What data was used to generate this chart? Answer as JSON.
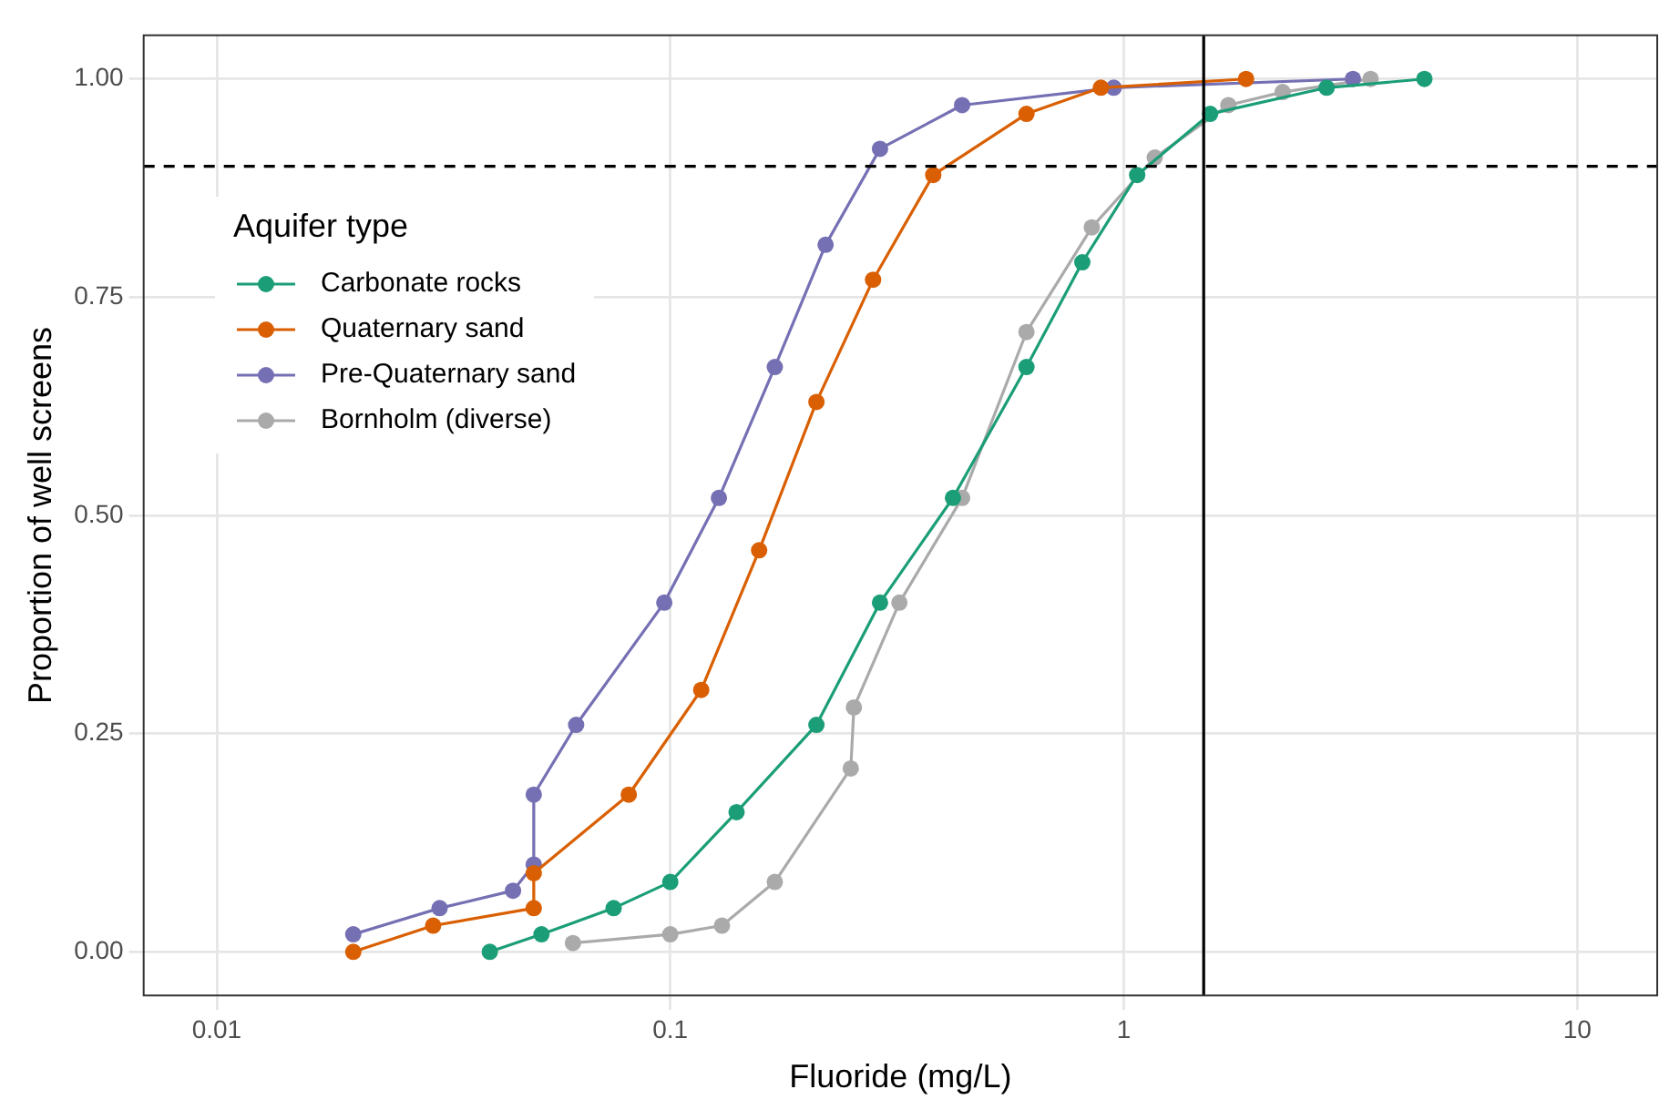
{
  "chart_data": {
    "type": "line",
    "xlabel": "Fluoride (mg/L)",
    "ylabel": "Proportion of well screens",
    "legend_title": "Aquifer type",
    "legend": "left",
    "grid": true,
    "log": "x",
    "marker": "circle",
    "line_style": "solid",
    "xlim": [
      0.0069,
      15
    ],
    "xticks": [
      0.01,
      0.1,
      1,
      10
    ],
    "ylim": [
      -0.05,
      1.05
    ],
    "yticks": [
      {
        "value": 0,
        "label": "0.00"
      },
      {
        "value": 0.25,
        "label": "0.25"
      },
      {
        "value": 0.5,
        "label": "0.50"
      },
      {
        "value": 0.75,
        "label": "0.75"
      },
      {
        "value": 1,
        "label": "1.00"
      }
    ],
    "series": [
      {
        "name": "Carbonate rocks",
        "color": "#1b9e77",
        "x": [
          0.04,
          0.052,
          0.075,
          0.1,
          0.14,
          0.21,
          0.29,
          0.42,
          0.61,
          0.81,
          1.07,
          1.55,
          2.8,
          4.6
        ],
        "values": [
          0,
          0.02,
          0.05,
          0.08,
          0.16,
          0.26,
          0.4,
          0.52,
          0.67,
          0.79,
          0.89,
          0.96,
          0.99,
          1
        ]
      },
      {
        "name": "Quaternary sand",
        "color": "#d95f02",
        "x": [
          0.02,
          0.03,
          0.05,
          0.05,
          0.081,
          0.117,
          0.157,
          0.21,
          0.28,
          0.38,
          0.61,
          0.89,
          1.86
        ],
        "values": [
          0,
          0.03,
          0.05,
          0.09,
          0.18,
          0.3,
          0.46,
          0.63,
          0.77,
          0.89,
          0.96,
          0.99,
          1
        ]
      },
      {
        "name": "Pre-Quaternary sand",
        "color": "#7570b3",
        "x": [
          0.02,
          0.031,
          0.045,
          0.05,
          0.05,
          0.062,
          0.097,
          0.128,
          0.17,
          0.22,
          0.29,
          0.44,
          0.95,
          3.2
        ],
        "values": [
          0.02,
          0.05,
          0.07,
          0.1,
          0.18,
          0.26,
          0.4,
          0.52,
          0.67,
          0.81,
          0.92,
          0.97,
          0.99,
          1
        ]
      },
      {
        "name": "Bornholm (diverse)",
        "color": "#aaaaaa",
        "x": [
          0.061,
          0.1,
          0.13,
          0.17,
          0.25,
          0.254,
          0.32,
          0.44,
          0.61,
          0.85,
          1.17,
          1.7,
          2.24,
          3.5
        ],
        "values": [
          0.01,
          0.02,
          0.03,
          0.08,
          0.21,
          0.28,
          0.4,
          0.52,
          0.71,
          0.83,
          0.91,
          0.97,
          0.985,
          1
        ]
      }
    ],
    "ref_lines": [
      {
        "axis": "y",
        "value": 0.9,
        "line_style": "dashed",
        "color": "#000000"
      },
      {
        "axis": "x",
        "value": 1.5,
        "line_style": "solid",
        "color": "#000000"
      }
    ]
  }
}
